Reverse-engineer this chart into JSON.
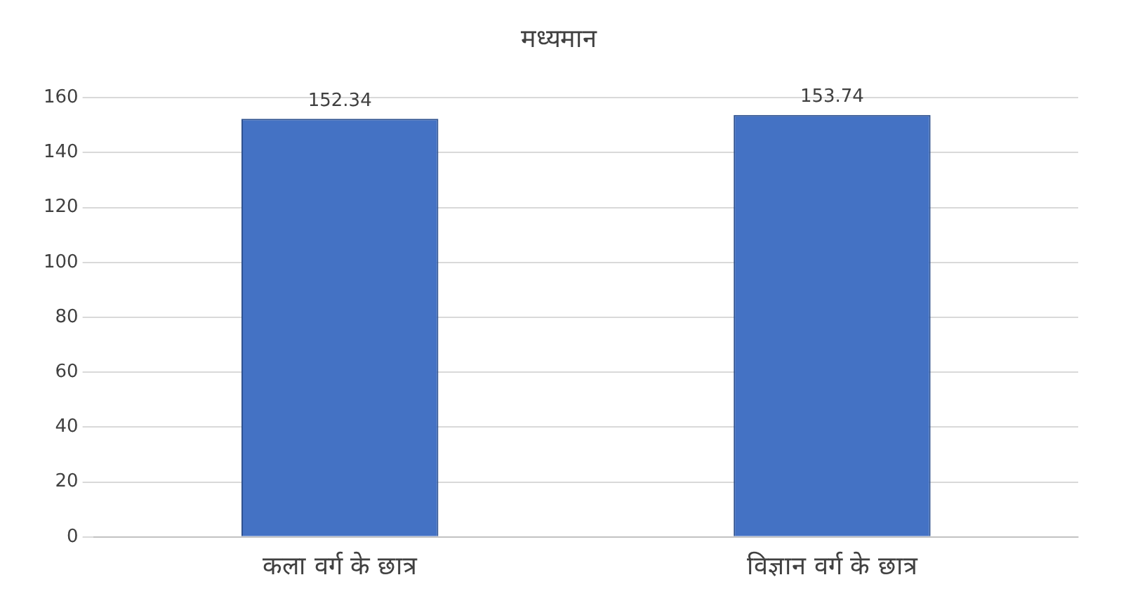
{
  "chart_data": {
    "type": "bar",
    "title": "मध्यमान",
    "categories": [
      "कला वर्ग के छात्र",
      "विज्ञान वर्ग के छात्र"
    ],
    "values": [
      152.34,
      153.74
    ],
    "color": "#4472c4",
    "ylim": [
      0,
      160
    ],
    "yticks": [
      0,
      20,
      40,
      60,
      80,
      100,
      120,
      140,
      160
    ],
    "grid": "y",
    "data_labels": true
  }
}
